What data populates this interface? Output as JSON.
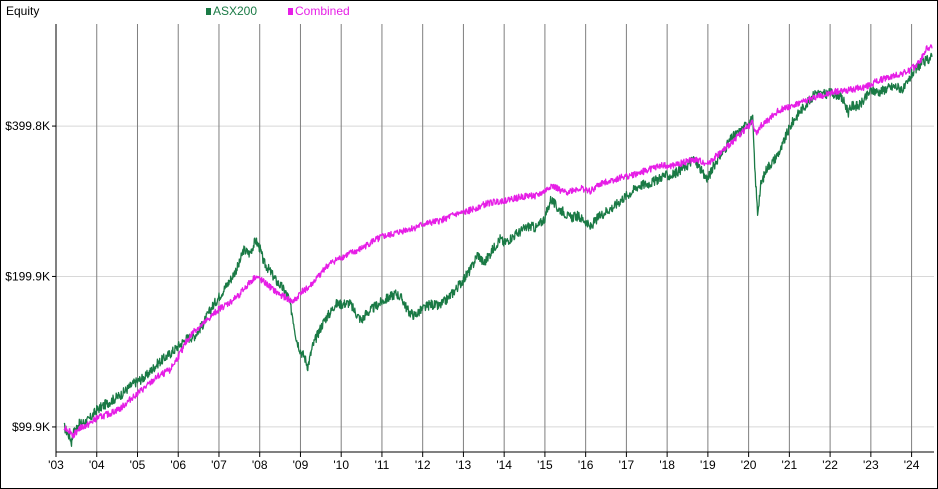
{
  "chart_data": {
    "type": "line",
    "title": "Equity",
    "yscale": "log",
    "ylim": [
      89000,
      640000
    ],
    "xlim": [
      2003.0,
      2024.55
    ],
    "y_ticks": [
      {
        "value": 99900,
        "label": "$99.9K"
      },
      {
        "value": 199900,
        "label": "$199.9K"
      },
      {
        "value": 399800,
        "label": "$399.8K"
      }
    ],
    "x_ticks": [
      {
        "value": 2003,
        "label": "'03"
      },
      {
        "value": 2004,
        "label": "'04"
      },
      {
        "value": 2005,
        "label": "'05"
      },
      {
        "value": 2006,
        "label": "'06"
      },
      {
        "value": 2007,
        "label": "'07"
      },
      {
        "value": 2008,
        "label": "'08"
      },
      {
        "value": 2009,
        "label": "'09"
      },
      {
        "value": 2010,
        "label": "'10"
      },
      {
        "value": 2011,
        "label": "'11"
      },
      {
        "value": 2012,
        "label": "'12"
      },
      {
        "value": 2013,
        "label": "'13"
      },
      {
        "value": 2014,
        "label": "'14"
      },
      {
        "value": 2015,
        "label": "'15"
      },
      {
        "value": 2016,
        "label": "'16"
      },
      {
        "value": 2017,
        "label": "'17"
      },
      {
        "value": 2018,
        "label": "'18"
      },
      {
        "value": 2019,
        "label": "'19"
      },
      {
        "value": 2020,
        "label": "'20"
      },
      {
        "value": 2021,
        "label": "'21"
      },
      {
        "value": 2022,
        "label": "'22"
      },
      {
        "value": 2023,
        "label": "'23"
      },
      {
        "value": 2024,
        "label": "'24"
      }
    ],
    "grid": {
      "vertical": true,
      "horizontal": true
    },
    "legend_position": "top",
    "series": [
      {
        "name": "ASX200",
        "color": "#1a7a45",
        "points": [
          [
            2003.2,
            99900
          ],
          [
            2003.35,
            95000
          ],
          [
            2003.38,
            93000
          ],
          [
            2003.42,
            97000
          ],
          [
            2003.55,
            101000
          ],
          [
            2003.8,
            103000
          ],
          [
            2004.0,
            108000
          ],
          [
            2004.3,
            112000
          ],
          [
            2004.6,
            116000
          ],
          [
            2004.9,
            122000
          ],
          [
            2005.2,
            126000
          ],
          [
            2005.5,
            134000
          ],
          [
            2005.8,
            140000
          ],
          [
            2006.2,
            150000
          ],
          [
            2006.4,
            152000
          ],
          [
            2006.6,
            160000
          ],
          [
            2006.8,
            172000
          ],
          [
            2007.0,
            182000
          ],
          [
            2007.3,
            198000
          ],
          [
            2007.5,
            212000
          ],
          [
            2007.6,
            226000
          ],
          [
            2007.75,
            222000
          ],
          [
            2007.9,
            236000
          ],
          [
            2008.0,
            228000
          ],
          [
            2008.1,
            213000
          ],
          [
            2008.25,
            205000
          ],
          [
            2008.4,
            196000
          ],
          [
            2008.55,
            190000
          ],
          [
            2008.7,
            182000
          ],
          [
            2008.8,
            168000
          ],
          [
            2008.9,
            150000
          ],
          [
            2009.0,
            142000
          ],
          [
            2009.1,
            138000
          ],
          [
            2009.18,
            132000
          ],
          [
            2009.3,
            145000
          ],
          [
            2009.45,
            155000
          ],
          [
            2009.6,
            164000
          ],
          [
            2009.75,
            170000
          ],
          [
            2009.85,
            176000
          ],
          [
            2010.0,
            176000
          ],
          [
            2010.2,
            177000
          ],
          [
            2010.4,
            167000
          ],
          [
            2010.5,
            163000
          ],
          [
            2010.6,
            168000
          ],
          [
            2010.8,
            173000
          ],
          [
            2011.0,
            178000
          ],
          [
            2011.2,
            182000
          ],
          [
            2011.35,
            185000
          ],
          [
            2011.5,
            180000
          ],
          [
            2011.65,
            170000
          ],
          [
            2011.8,
            167000
          ],
          [
            2012.0,
            172000
          ],
          [
            2012.2,
            176000
          ],
          [
            2012.4,
            174000
          ],
          [
            2012.6,
            180000
          ],
          [
            2012.8,
            188000
          ],
          [
            2013.0,
            197000
          ],
          [
            2013.2,
            208000
          ],
          [
            2013.35,
            222000
          ],
          [
            2013.5,
            212000
          ],
          [
            2013.7,
            225000
          ],
          [
            2013.9,
            238000
          ],
          [
            2014.0,
            233000
          ],
          [
            2014.2,
            240000
          ],
          [
            2014.4,
            246000
          ],
          [
            2014.6,
            252000
          ],
          [
            2014.8,
            250000
          ],
          [
            2015.0,
            262000
          ],
          [
            2015.15,
            286000
          ],
          [
            2015.3,
            274000
          ],
          [
            2015.45,
            270000
          ],
          [
            2015.6,
            262000
          ],
          [
            2015.8,
            264000
          ],
          [
            2016.0,
            258000
          ],
          [
            2016.1,
            250000
          ],
          [
            2016.3,
            262000
          ],
          [
            2016.5,
            270000
          ],
          [
            2016.7,
            276000
          ],
          [
            2016.9,
            286000
          ],
          [
            2017.1,
            294000
          ],
          [
            2017.3,
            304000
          ],
          [
            2017.5,
            306000
          ],
          [
            2017.7,
            310000
          ],
          [
            2017.9,
            318000
          ],
          [
            2018.1,
            318000
          ],
          [
            2018.3,
            326000
          ],
          [
            2018.5,
            334000
          ],
          [
            2018.65,
            344000
          ],
          [
            2018.8,
            330000
          ],
          [
            2018.9,
            318000
          ],
          [
            2019.0,
            314000
          ],
          [
            2019.2,
            340000
          ],
          [
            2019.4,
            358000
          ],
          [
            2019.6,
            380000
          ],
          [
            2019.8,
            390000
          ],
          [
            2020.0,
            408000
          ],
          [
            2020.1,
            412000
          ],
          [
            2020.15,
            330000
          ],
          [
            2020.22,
            268000
          ],
          [
            2020.3,
            305000
          ],
          [
            2020.45,
            330000
          ],
          [
            2020.6,
            340000
          ],
          [
            2020.8,
            360000
          ],
          [
            2020.95,
            388000
          ],
          [
            2021.1,
            410000
          ],
          [
            2021.3,
            432000
          ],
          [
            2021.5,
            450000
          ],
          [
            2021.65,
            468000
          ],
          [
            2021.8,
            462000
          ],
          [
            2022.0,
            466000
          ],
          [
            2022.2,
            462000
          ],
          [
            2022.35,
            446000
          ],
          [
            2022.45,
            426000
          ],
          [
            2022.55,
            440000
          ],
          [
            2022.7,
            438000
          ],
          [
            2022.85,
            452000
          ],
          [
            2023.0,
            472000
          ],
          [
            2023.2,
            468000
          ],
          [
            2023.4,
            476000
          ],
          [
            2023.6,
            480000
          ],
          [
            2023.8,
            474000
          ],
          [
            2023.9,
            486000
          ],
          [
            2024.0,
            508000
          ],
          [
            2024.2,
            530000
          ],
          [
            2024.35,
            540000
          ],
          [
            2024.5,
            550000
          ]
        ]
      },
      {
        "name": "Combined",
        "color": "#e61ee6",
        "points": [
          [
            2003.2,
            99900
          ],
          [
            2003.35,
            98000
          ],
          [
            2003.42,
            96000
          ],
          [
            2003.55,
            99000
          ],
          [
            2003.8,
            101000
          ],
          [
            2004.0,
            104000
          ],
          [
            2004.3,
            106000
          ],
          [
            2004.6,
            109000
          ],
          [
            2004.9,
            115000
          ],
          [
            2005.2,
            120000
          ],
          [
            2005.5,
            126000
          ],
          [
            2005.8,
            130000
          ],
          [
            2006.0,
            138000
          ],
          [
            2006.2,
            148000
          ],
          [
            2006.4,
            156000
          ],
          [
            2006.6,
            160000
          ],
          [
            2006.8,
            166000
          ],
          [
            2007.0,
            172000
          ],
          [
            2007.3,
            178000
          ],
          [
            2007.5,
            184000
          ],
          [
            2007.7,
            192000
          ],
          [
            2007.9,
            200000
          ],
          [
            2008.05,
            196000
          ],
          [
            2008.2,
            192000
          ],
          [
            2008.4,
            186000
          ],
          [
            2008.6,
            182000
          ],
          [
            2008.8,
            178000
          ],
          [
            2008.9,
            180000
          ],
          [
            2009.0,
            186000
          ],
          [
            2009.2,
            190000
          ],
          [
            2009.4,
            198000
          ],
          [
            2009.6,
            208000
          ],
          [
            2009.8,
            214000
          ],
          [
            2010.0,
            218000
          ],
          [
            2010.2,
            222000
          ],
          [
            2010.4,
            225000
          ],
          [
            2010.6,
            230000
          ],
          [
            2010.8,
            236000
          ],
          [
            2011.0,
            240000
          ],
          [
            2011.2,
            242000
          ],
          [
            2011.4,
            245000
          ],
          [
            2011.6,
            248000
          ],
          [
            2011.8,
            250000
          ],
          [
            2012.0,
            254000
          ],
          [
            2012.2,
            256000
          ],
          [
            2012.4,
            258000
          ],
          [
            2012.6,
            262000
          ],
          [
            2012.8,
            266000
          ],
          [
            2013.0,
            268000
          ],
          [
            2013.2,
            272000
          ],
          [
            2013.4,
            276000
          ],
          [
            2013.6,
            280000
          ],
          [
            2013.8,
            282000
          ],
          [
            2014.0,
            284000
          ],
          [
            2014.2,
            286000
          ],
          [
            2014.4,
            288000
          ],
          [
            2014.6,
            290000
          ],
          [
            2014.8,
            290000
          ],
          [
            2015.0,
            296000
          ],
          [
            2015.15,
            304000
          ],
          [
            2015.3,
            300000
          ],
          [
            2015.5,
            294000
          ],
          [
            2015.7,
            298000
          ],
          [
            2015.9,
            300000
          ],
          [
            2016.1,
            296000
          ],
          [
            2016.3,
            304000
          ],
          [
            2016.5,
            310000
          ],
          [
            2016.7,
            312000
          ],
          [
            2016.9,
            316000
          ],
          [
            2017.1,
            318000
          ],
          [
            2017.3,
            322000
          ],
          [
            2017.5,
            326000
          ],
          [
            2017.7,
            330000
          ],
          [
            2017.9,
            334000
          ],
          [
            2018.1,
            332000
          ],
          [
            2018.3,
            336000
          ],
          [
            2018.5,
            340000
          ],
          [
            2018.7,
            342000
          ],
          [
            2018.9,
            338000
          ],
          [
            2019.0,
            336000
          ],
          [
            2019.2,
            348000
          ],
          [
            2019.4,
            358000
          ],
          [
            2019.6,
            372000
          ],
          [
            2019.8,
            386000
          ],
          [
            2020.0,
            400000
          ],
          [
            2020.1,
            406000
          ],
          [
            2020.15,
            396000
          ],
          [
            2020.2,
            385000
          ],
          [
            2020.3,
            400000
          ],
          [
            2020.5,
            412000
          ],
          [
            2020.7,
            428000
          ],
          [
            2020.9,
            436000
          ],
          [
            2021.1,
            440000
          ],
          [
            2021.3,
            446000
          ],
          [
            2021.5,
            452000
          ],
          [
            2021.7,
            460000
          ],
          [
            2021.9,
            462000
          ],
          [
            2022.1,
            468000
          ],
          [
            2022.3,
            470000
          ],
          [
            2022.5,
            472000
          ],
          [
            2022.7,
            476000
          ],
          [
            2022.9,
            480000
          ],
          [
            2023.1,
            490000
          ],
          [
            2023.3,
            496000
          ],
          [
            2023.5,
            502000
          ],
          [
            2023.7,
            508000
          ],
          [
            2023.9,
            514000
          ],
          [
            2024.1,
            528000
          ],
          [
            2024.25,
            546000
          ],
          [
            2024.35,
            570000
          ],
          [
            2024.45,
            575000
          ],
          [
            2024.5,
            572000
          ]
        ]
      }
    ]
  }
}
